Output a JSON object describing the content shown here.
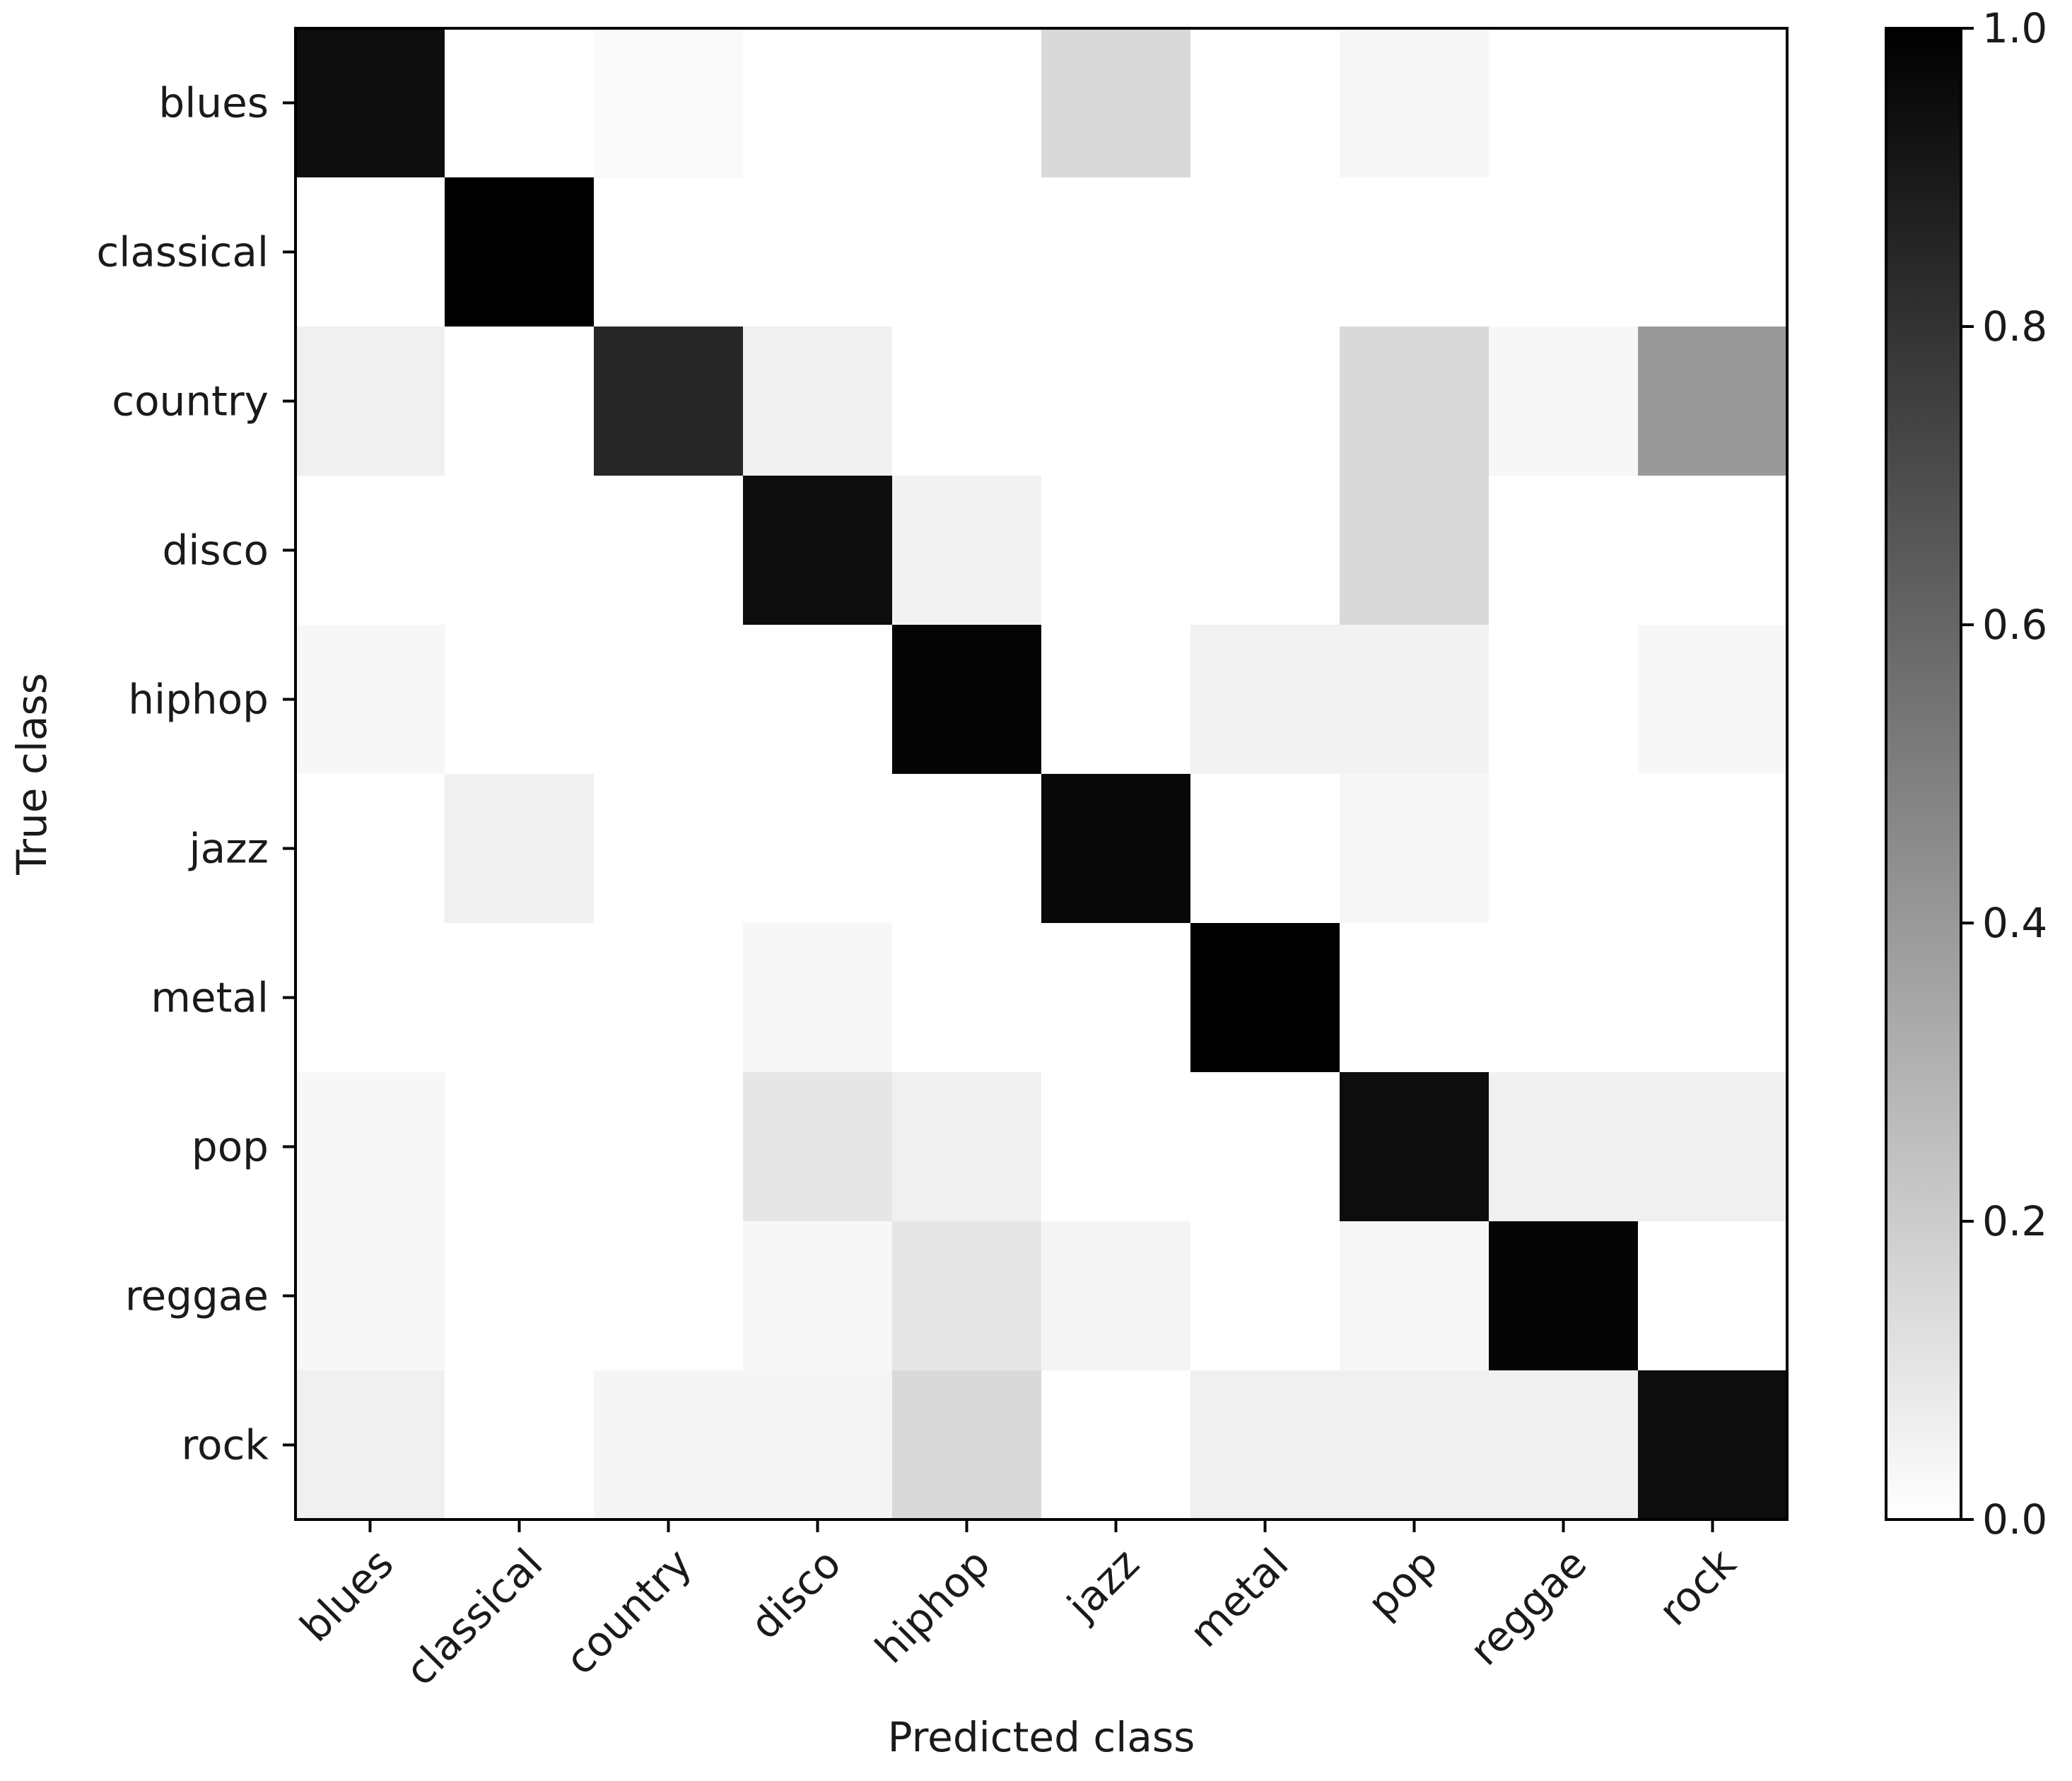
{
  "chart_data": {
    "type": "heatmap",
    "xlabel": "Predicted class",
    "ylabel": "True class",
    "x_categories": [
      "blues",
      "classical",
      "country",
      "disco",
      "hiphop",
      "jazz",
      "metal",
      "pop",
      "reggae",
      "rock"
    ],
    "y_categories": [
      "blues",
      "classical",
      "country",
      "disco",
      "hiphop",
      "jazz",
      "metal",
      "pop",
      "reggae",
      "rock"
    ],
    "values": [
      [
        0.95,
        0.0,
        0.02,
        0.0,
        0.0,
        0.15,
        0.0,
        0.03,
        0.0,
        0.0
      ],
      [
        0.0,
        1.0,
        0.0,
        0.0,
        0.0,
        0.0,
        0.0,
        0.0,
        0.0,
        0.0
      ],
      [
        0.06,
        0.0,
        0.85,
        0.06,
        0.0,
        0.0,
        0.0,
        0.15,
        0.03,
        0.4
      ],
      [
        0.0,
        0.0,
        0.0,
        0.95,
        0.05,
        0.0,
        0.0,
        0.15,
        0.0,
        0.0
      ],
      [
        0.03,
        0.0,
        0.0,
        0.0,
        0.98,
        0.0,
        0.05,
        0.05,
        0.0,
        0.03
      ],
      [
        0.0,
        0.06,
        0.0,
        0.0,
        0.0,
        0.97,
        0.0,
        0.03,
        0.0,
        0.0
      ],
      [
        0.0,
        0.0,
        0.0,
        0.03,
        0.0,
        0.0,
        1.0,
        0.0,
        0.0,
        0.0
      ],
      [
        0.03,
        0.0,
        0.0,
        0.1,
        0.06,
        0.0,
        0.0,
        0.95,
        0.06,
        0.06
      ],
      [
        0.03,
        0.0,
        0.0,
        0.03,
        0.1,
        0.04,
        0.0,
        0.03,
        0.98,
        0.0
      ],
      [
        0.06,
        0.0,
        0.04,
        0.04,
        0.15,
        0.0,
        0.06,
        0.06,
        0.06,
        0.95
      ]
    ],
    "colormap": "Greys",
    "vmin": 0.0,
    "vmax": 1.0,
    "colorbar": {
      "ticks": [
        0.0,
        0.2,
        0.4,
        0.6,
        0.8,
        1.0
      ],
      "tick_labels": [
        "0.0",
        "0.2",
        "0.4",
        "0.6",
        "0.8",
        "1.0"
      ]
    },
    "grid": false
  }
}
